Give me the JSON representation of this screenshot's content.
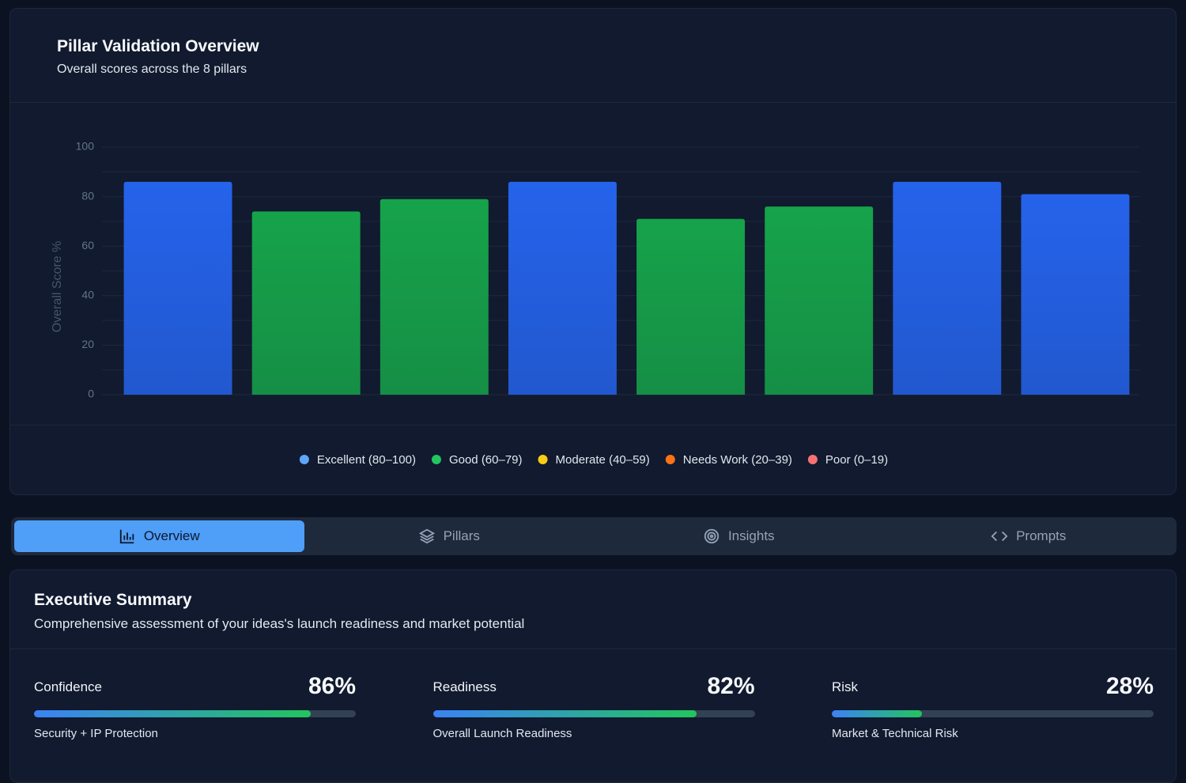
{
  "chart_data": {
    "type": "bar",
    "title": "Pillar Validation Overview",
    "subtitle": "Overall scores across the 8 pillars",
    "y_label": "Overall Score %",
    "categories": [
      null,
      null,
      null,
      null,
      null,
      null,
      null,
      null
    ],
    "values": [
      86,
      74,
      79,
      86,
      71,
      76,
      86,
      81
    ],
    "colors": [
      "#2563eb",
      "#16a34a",
      "#16a34a",
      "#2563eb",
      "#16a34a",
      "#16a34a",
      "#2563eb",
      "#2563eb"
    ],
    "ylim": [
      0,
      100
    ],
    "yticks": [
      0,
      20,
      40,
      60,
      80,
      100
    ],
    "grid": true,
    "legend": [
      {
        "label": "Excellent (80–100)",
        "color": "#60a5fa"
      },
      {
        "label": "Good (60–79)",
        "color": "#22c55e"
      },
      {
        "label": "Moderate (40–59)",
        "color": "#facc15"
      },
      {
        "label": "Needs Work (20–39)",
        "color": "#f97316"
      },
      {
        "label": "Poor (0–19)",
        "color": "#f87171"
      }
    ]
  },
  "tabs": [
    "Overview",
    "Pillars",
    "Insights",
    "Prompts"
  ],
  "summary": {
    "title": "Executive Summary",
    "subtitle": "Comprehensive assessment of your ideas's launch readiness and market potential",
    "xlim": [
      0,
      100
    ],
    "metrics": [
      {
        "label": "Confidence",
        "value": 86,
        "value_label": "86%",
        "caption": "Security + IP Protection"
      },
      {
        "label": "Readiness",
        "value": 82,
        "value_label": "82%",
        "caption": "Overall Launch Readiness"
      },
      {
        "label": "Risk",
        "value": 28,
        "value_label": "28%",
        "caption": "Market & Technical Risk"
      }
    ]
  }
}
